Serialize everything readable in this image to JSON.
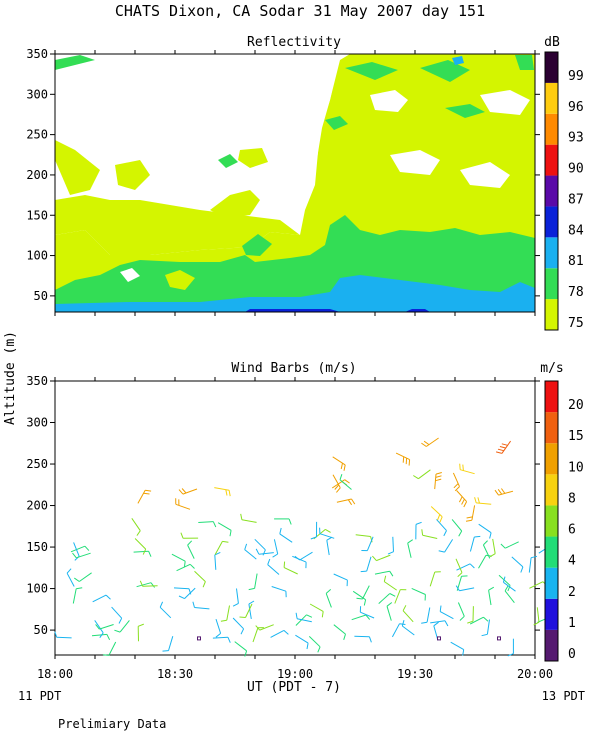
{
  "figure": {
    "title": "CHATS Dixon, CA  Sodar  31 May 2007  day 151",
    "ylabel": "Altitude (m)",
    "xlabel": "UT  (PDT - 7)",
    "x_ticks": [
      "18:00",
      "18:30",
      "19:00",
      "19:30",
      "20:00"
    ],
    "x_left_note": "11 PDT",
    "x_right_note": "13 PDT",
    "footer": "Prelimiary Data"
  },
  "chart_data": [
    {
      "type": "heatmap",
      "title": "Reflectivity",
      "ylim": [
        30,
        350
      ],
      "y_ticks": [
        50,
        100,
        150,
        200,
        250,
        300,
        350
      ],
      "colorbar": {
        "unit": "dB",
        "levels": [
          75,
          78,
          81,
          84,
          87,
          90,
          93,
          96,
          99
        ],
        "colors": [
          "#d4f500",
          "#33dd55",
          "#1ab0f0",
          "#0a22d8",
          "#5a0aa8",
          "#ee1111",
          "#ff8a00",
          "#ffcc10",
          "#2b0032"
        ]
      },
      "regions": [
        {
          "level": 75,
          "note": "main yellow-green background with white (below 75 dB) gaps, extending up to 350 m on the right"
        },
        {
          "level": 78,
          "note": "green layer 40-120 m, patches near 150-330 m"
        },
        {
          "level": 81,
          "note": "cyan band 40-80 m, strongest after 19:30"
        },
        {
          "level": 84,
          "note": "thin blue strip near 40 m around 19:00 and 19:30"
        }
      ]
    },
    {
      "type": "scatter",
      "title": "Wind Barbs (m/s)",
      "ylim": [
        20,
        350
      ],
      "y_ticks": [
        50,
        100,
        150,
        200,
        250,
        300,
        350
      ],
      "colorbar": {
        "unit": "m/s",
        "levels": [
          0,
          1,
          2,
          4,
          6,
          8,
          10,
          15,
          20
        ],
        "colors": [
          "#551a70",
          "#2010dd",
          "#18b4f0",
          "#22dd77",
          "#88e020",
          "#f7d210",
          "#f0a000",
          "#f06010",
          "#ee1111"
        ]
      }
    }
  ]
}
